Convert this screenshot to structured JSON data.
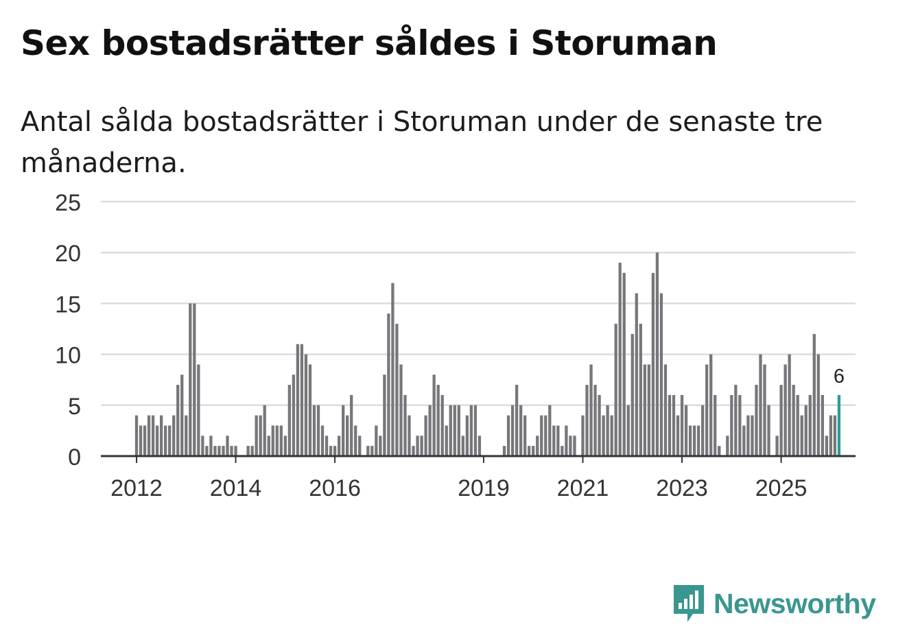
{
  "header": {
    "title": "Sex bostadsrätter såldes i Storuman",
    "subtitle": "Antal sålda bostadsrätter i Storuman under de senaste tre månaderna."
  },
  "logo": {
    "text": "Newsworthy",
    "icon": "newsworthy-logo-icon",
    "color": "#3a9690"
  },
  "colors": {
    "bar": "#77767b",
    "highlight": "#2a9d95",
    "grid": "#dcdcdc",
    "axis": "#333333",
    "text": "#333333"
  },
  "chart_data": {
    "type": "bar",
    "title": "Sex bostadsrätter såldes i Storuman",
    "xlabel": "",
    "ylabel": "",
    "ylim": [
      0,
      25
    ],
    "yticks": [
      "0",
      "5",
      "10",
      "15",
      "20",
      "25"
    ],
    "grid": true,
    "start_month": "2012-01",
    "end_month": "2025-12",
    "xticks": [
      {
        "label": "2012",
        "month": "2012-01"
      },
      {
        "label": "2014",
        "month": "2014-01"
      },
      {
        "label": "2016",
        "month": "2016-01"
      },
      {
        "label": "2019",
        "month": "2019-01"
      },
      {
        "label": "2021",
        "month": "2021-01"
      },
      {
        "label": "2023",
        "month": "2023-01"
      },
      {
        "label": "2025",
        "month": "2025-01"
      }
    ],
    "highlight_label": "6",
    "values": [
      4,
      3,
      3,
      4,
      4,
      3,
      4,
      3,
      3,
      4,
      7,
      8,
      4,
      15,
      15,
      9,
      2,
      1,
      2,
      1,
      1,
      1,
      2,
      1,
      1,
      0,
      0,
      1,
      1,
      4,
      4,
      5,
      2,
      3,
      3,
      3,
      2,
      7,
      8,
      11,
      11,
      10,
      9,
      5,
      5,
      3,
      2,
      1,
      1,
      2,
      5,
      4,
      6,
      3,
      2,
      0,
      1,
      1,
      3,
      2,
      8,
      14,
      17,
      13,
      9,
      6,
      4,
      1,
      2,
      2,
      4,
      5,
      8,
      7,
      6,
      3,
      5,
      5,
      5,
      2,
      4,
      5,
      5,
      2,
      0,
      0,
      0,
      0,
      0,
      1,
      4,
      5,
      7,
      5,
      4,
      1,
      1,
      2,
      4,
      4,
      5,
      3,
      3,
      1,
      3,
      2,
      2,
      0,
      4,
      7,
      9,
      7,
      6,
      4,
      5,
      4,
      13,
      19,
      18,
      5,
      12,
      16,
      13,
      9,
      9,
      18,
      20,
      16,
      9,
      6,
      6,
      4,
      6,
      5,
      3,
      3,
      3,
      5,
      9,
      10,
      6,
      1,
      0,
      2,
      6,
      7,
      6,
      3,
      4,
      4,
      7,
      10,
      9,
      5,
      0,
      2,
      7,
      9,
      10,
      7,
      6,
      4,
      5,
      6,
      12,
      10,
      6,
      2,
      4,
      4,
      6
    ]
  }
}
